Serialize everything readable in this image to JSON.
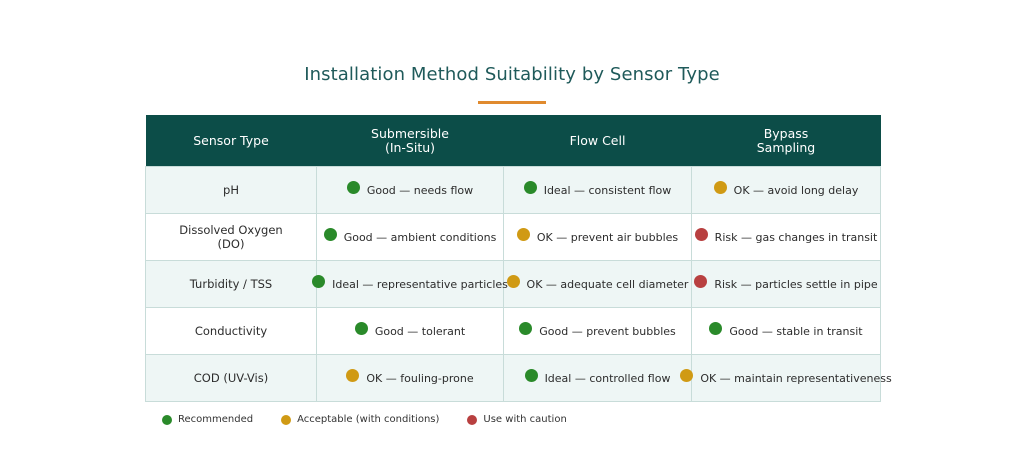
{
  "title": "Installation Method Suitability by Sensor Type",
  "colors": {
    "header_bg": "#0c4d48",
    "title_color": "#1f5a5a",
    "accent": "#e08a2e",
    "green": "#2a8a2a",
    "amber": "#d09a14",
    "red": "#b84040"
  },
  "columns": {
    "sensor": "Sensor Type",
    "submersible_line1": "Submersible",
    "submersible_line2": "(In-Situ)",
    "flow_cell": "Flow Cell",
    "bypass_line1": "Bypass",
    "bypass_line2": "Sampling"
  },
  "rows": [
    {
      "sensor_line1": "pH",
      "sensor_line2": "",
      "cells": [
        {
          "status": "green",
          "text": "Good — needs flow"
        },
        {
          "status": "green",
          "text": "Ideal — consistent flow"
        },
        {
          "status": "amber",
          "text": "OK — avoid long delay"
        }
      ]
    },
    {
      "sensor_line1": "Dissolved Oxygen",
      "sensor_line2": "(DO)",
      "cells": [
        {
          "status": "green",
          "text": "Good — ambient conditions"
        },
        {
          "status": "amber",
          "text": "OK — prevent air bubbles"
        },
        {
          "status": "red",
          "text": "Risk — gas changes in transit"
        }
      ]
    },
    {
      "sensor_line1": "Turbidity / TSS",
      "sensor_line2": "",
      "cells": [
        {
          "status": "green",
          "text": "Ideal — representative particles"
        },
        {
          "status": "amber",
          "text": "OK — adequate cell diameter"
        },
        {
          "status": "red",
          "text": "Risk — particles settle in pipe"
        }
      ]
    },
    {
      "sensor_line1": "Conductivity",
      "sensor_line2": "",
      "cells": [
        {
          "status": "green",
          "text": "Good — tolerant"
        },
        {
          "status": "green",
          "text": "Good — prevent bubbles"
        },
        {
          "status": "green",
          "text": "Good — stable in transit"
        }
      ]
    },
    {
      "sensor_line1": "COD (UV-Vis)",
      "sensor_line2": "",
      "cells": [
        {
          "status": "amber",
          "text": "OK — fouling-prone"
        },
        {
          "status": "green",
          "text": "Ideal — controlled flow"
        },
        {
          "status": "amber",
          "text": "OK — maintain representativeness"
        }
      ]
    }
  ],
  "legend": {
    "green": "Recommended",
    "amber": "Acceptable (with conditions)",
    "red": "Use with caution"
  }
}
